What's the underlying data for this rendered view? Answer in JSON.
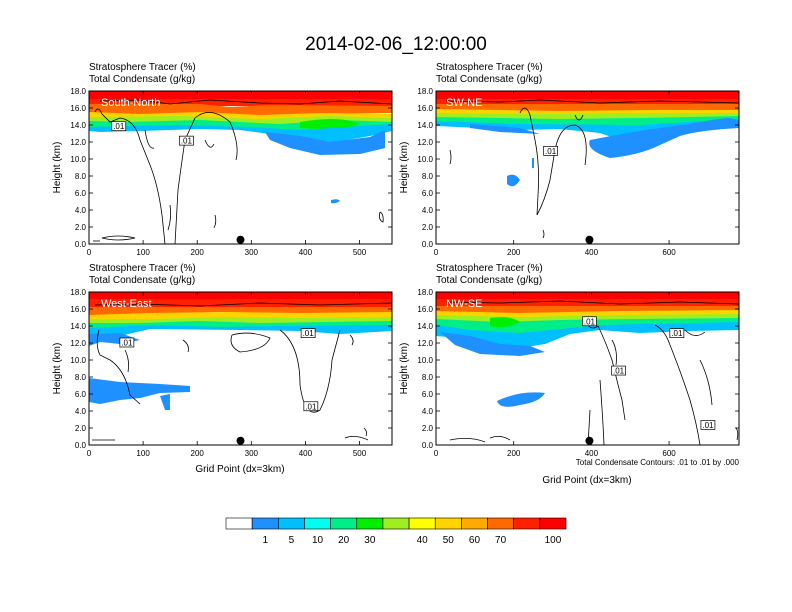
{
  "page": {
    "title": "2014-02-06_12:00:00",
    "note": "Total Condensate Contours: .01 to .01 by .000",
    "xlabel": "Grid Point (dx=3km)"
  },
  "colors": {
    "bins": [
      "#ffffff",
      "#1e90ff",
      "#00bfff",
      "#00ffee",
      "#00ee88",
      "#00ee00",
      "#a0ee20",
      "#ffff00",
      "#ffd200",
      "#ffaa00",
      "#ff6a00",
      "#ff2000",
      "#ff0000"
    ],
    "labelled_levels": [
      "1",
      "5",
      "10",
      "20",
      "30",
      "40",
      "50",
      "60",
      "70",
      "100"
    ]
  },
  "chart_data": [
    {
      "type": "heatmap",
      "name": "South-North",
      "header1": "Stratosphere Tracer   (%)",
      "header2": "Total Condensate   (g/kg)",
      "ylabel": "Height (km)",
      "xlabel": "",
      "xlim": [
        0,
        560
      ],
      "ylim": [
        0,
        18
      ],
      "xticks": [
        0,
        100,
        200,
        300,
        400,
        500
      ],
      "yticks": [
        "0.0",
        "2.0",
        "4.0",
        "6.0",
        "8.0",
        "10.0",
        "12.0",
        "14.0",
        "16.0",
        "18.0"
      ],
      "marker_x": 280,
      "contour_labels": [
        ".01",
        ".01"
      ],
      "contour_label_pos": [
        [
          55,
          13.8
        ],
        [
          180,
          12.1
        ]
      ]
    },
    {
      "type": "heatmap",
      "name": "SW-NE",
      "header1": "Stratosphere Tracer   (%)",
      "header2": "Total Condensate   (g/kg)",
      "ylabel": "Height (km)",
      "xlabel": "",
      "xlim": [
        0,
        780
      ],
      "ylim": [
        0,
        18
      ],
      "xticks": [
        0,
        200,
        400,
        600
      ],
      "yticks": [
        "0.0",
        "2.0",
        "4.0",
        "6.0",
        "8.0",
        "10.0",
        "12.0",
        "14.0",
        "16.0",
        "18.0"
      ],
      "marker_x": 395,
      "contour_labels": [
        ".01"
      ],
      "contour_label_pos": [
        [
          295,
          10.9
        ]
      ]
    },
    {
      "type": "heatmap",
      "name": "West-East",
      "header1": "Stratosphere Tracer   (%)",
      "header2": "Total Condensate   (g/kg)",
      "ylabel": "Height (km)",
      "xlabel": "",
      "xlim": [
        0,
        560
      ],
      "ylim": [
        0,
        18
      ],
      "xticks": [
        0,
        100,
        200,
        300,
        400,
        500
      ],
      "yticks": [
        "0.0",
        "2.0",
        "4.0",
        "6.0",
        "8.0",
        "10.0",
        "12.0",
        "14.0",
        "16.0",
        "18.0"
      ],
      "marker_x": 280,
      "contour_labels": [
        ".01",
        ".01",
        ".01"
      ],
      "contour_label_pos": [
        [
          70,
          12.0
        ],
        [
          405,
          13.1
        ],
        [
          410,
          4.5
        ]
      ]
    },
    {
      "type": "heatmap",
      "name": "NW-SE",
      "header1": "Stratosphere Tracer   (%)",
      "header2": "Total Condensate   (g/kg)",
      "ylabel": "Height (km)",
      "xlabel": "",
      "xlim": [
        0,
        780
      ],
      "ylim": [
        0,
        18
      ],
      "xticks": [
        0,
        200,
        400,
        600
      ],
      "yticks": [
        "0.0",
        "2.0",
        "4.0",
        "6.0",
        "8.0",
        "10.0",
        "12.0",
        "14.0",
        "16.0",
        "18.0"
      ],
      "marker_x": 395,
      "contour_labels": [
        ".01",
        ".01",
        ".01",
        ".01"
      ],
      "contour_label_pos": [
        [
          395,
          14.5
        ],
        [
          620,
          13.1
        ],
        [
          470,
          8.7
        ],
        [
          700,
          2.3
        ]
      ]
    }
  ]
}
